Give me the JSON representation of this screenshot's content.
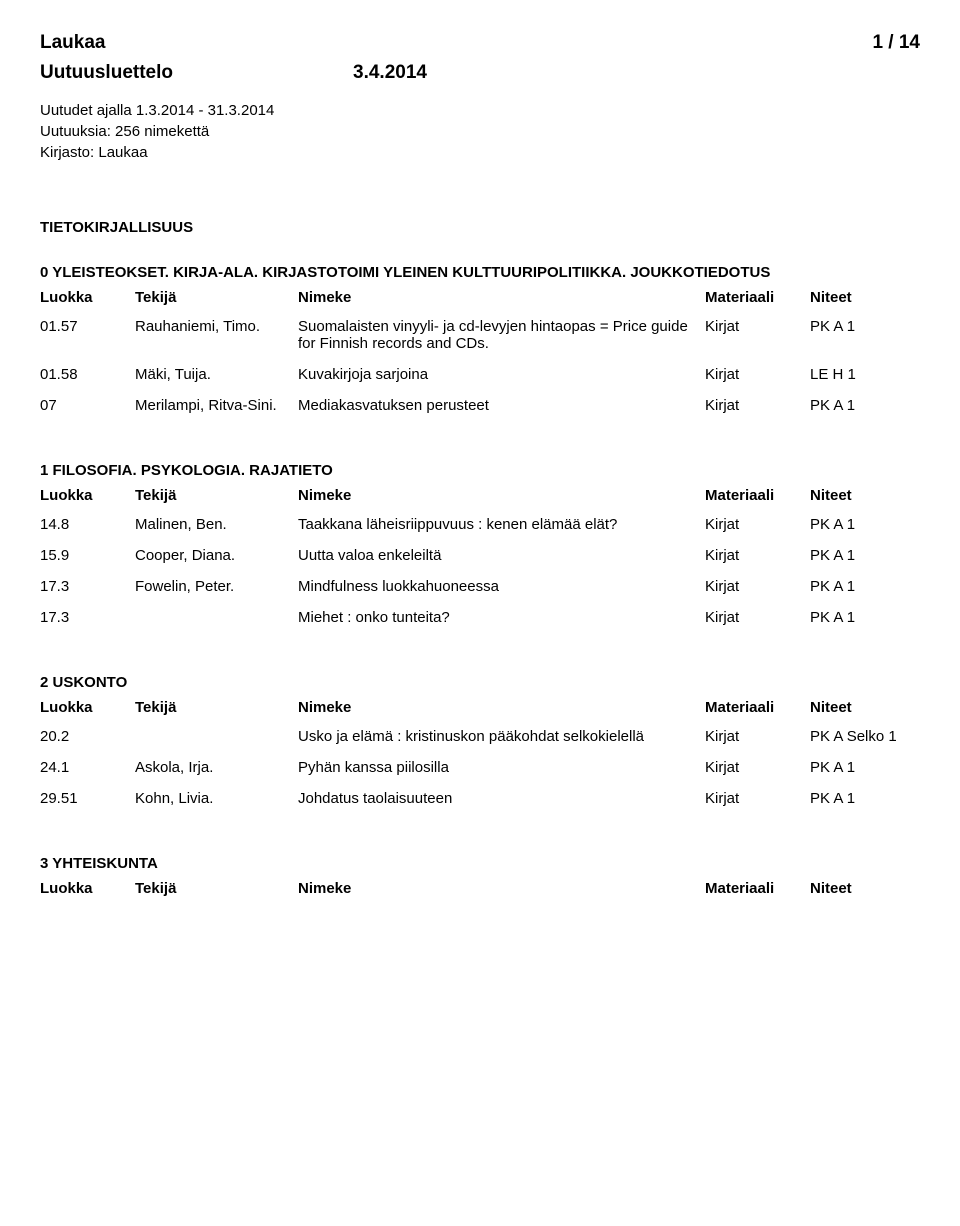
{
  "header": {
    "library": "Laukaa",
    "page": "1 / 14",
    "listTitle": "Uutuusluettelo",
    "date": "3.4.2014",
    "dateRange": "Uutudet ajalla 1.3.2014 - 31.3.2014",
    "countLine": "Uutuuksia: 256 nimekettä",
    "libraryLine": "Kirjasto: Laukaa"
  },
  "mainSection": "TIETOKIRJALLISUUS",
  "cols": {
    "luokka": "Luokka",
    "tekija": "Tekijä",
    "nimeke": "Nimeke",
    "materiaali": "Materiaali",
    "niteet": "Niteet"
  },
  "sections": [
    {
      "title": "0 YLEISTEOKSET. KIRJA-ALA. KIRJASTOTOIMI YLEINEN KULTTUURIPOLITIIKKA. JOUKKOTIEDOTUS",
      "rows": [
        {
          "luokka": "01.57",
          "tekija": "Rauhaniemi, Timo.",
          "nimeke": "Suomalaisten vinyyli- ja cd-levyjen hintaopas = Price guide for Finnish records and CDs.",
          "materiaali": "Kirjat",
          "niteet": "PK A 1"
        },
        {
          "luokka": "01.58",
          "tekija": "Mäki, Tuija.",
          "nimeke": "Kuvakirjoja sarjoina",
          "materiaali": "Kirjat",
          "niteet": "LE H 1"
        },
        {
          "luokka": "07",
          "tekija": "Merilampi, Ritva-Sini.",
          "nimeke": "Mediakasvatuksen perusteet",
          "materiaali": "Kirjat",
          "niteet": "PK A 1"
        }
      ]
    },
    {
      "title": "1 FILOSOFIA. PSYKOLOGIA. RAJATIETO",
      "rows": [
        {
          "luokka": "14.8",
          "tekija": "Malinen, Ben.",
          "nimeke": "Taakkana läheisriippuvuus : kenen elämää elät?",
          "materiaali": "Kirjat",
          "niteet": "PK A 1"
        },
        {
          "luokka": "15.9",
          "tekija": "Cooper, Diana.",
          "nimeke": "Uutta valoa enkeleiltä",
          "materiaali": "Kirjat",
          "niteet": "PK A 1"
        },
        {
          "luokka": "17.3",
          "tekija": "Fowelin, Peter.",
          "nimeke": "Mindfulness luokkahuoneessa",
          "materiaali": "Kirjat",
          "niteet": "PK A 1"
        },
        {
          "luokka": "17.3",
          "tekija": "",
          "nimeke": "Miehet : onko tunteita?",
          "materiaali": "Kirjat",
          "niteet": "PK A 1"
        }
      ]
    },
    {
      "title": "2 USKONTO",
      "rows": [
        {
          "luokka": "20.2",
          "tekija": "",
          "nimeke": "Usko ja elämä : kristinuskon pääkohdat selkokielellä",
          "materiaali": "Kirjat",
          "niteet": "PK A Selko 1"
        },
        {
          "luokka": "24.1",
          "tekija": "Askola, Irja.",
          "nimeke": "Pyhän kanssa piilosilla",
          "materiaali": "Kirjat",
          "niteet": "PK A 1"
        },
        {
          "luokka": "29.51",
          "tekija": "Kohn, Livia.",
          "nimeke": "Johdatus taolaisuuteen",
          "materiaali": "Kirjat",
          "niteet": "PK A 1"
        }
      ]
    },
    {
      "title": "3 YHTEISKUNTA",
      "rows": []
    }
  ]
}
